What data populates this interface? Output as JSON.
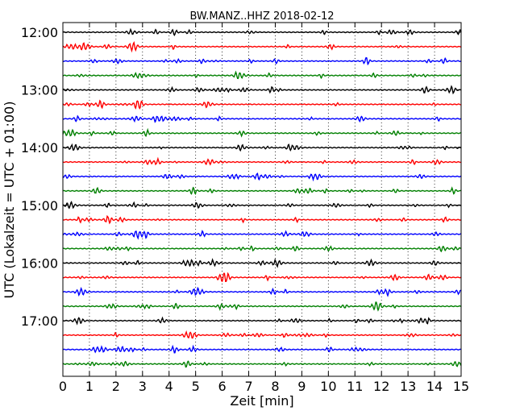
{
  "chart_data": {
    "type": "line",
    "title": "BW.MANZ..HHZ 2018-02-12",
    "xlabel": "Zeit  [min]",
    "ylabel": "UTC (Lokalzeit = UTC + 01:00)",
    "xlim": [
      0,
      15
    ],
    "x_ticks": [
      "0",
      "1",
      "2",
      "3",
      "4",
      "5",
      "6",
      "7",
      "8",
      "9",
      "10",
      "11",
      "12",
      "13",
      "14",
      "15"
    ],
    "y_tick_labels": [
      "12:00",
      "13:00",
      "14:00",
      "15:00",
      "16:00",
      "17:00"
    ],
    "grid": "vertical dotted at each minute",
    "trace_colors": [
      "#000000",
      "#ff0000",
      "#0000ff",
      "#008000"
    ],
    "series": [
      {
        "start": "12:00",
        "color": "#000000"
      },
      {
        "start": "12:15",
        "color": "#ff0000"
      },
      {
        "start": "12:30",
        "color": "#0000ff"
      },
      {
        "start": "12:45",
        "color": "#008000"
      },
      {
        "start": "13:00",
        "color": "#000000"
      },
      {
        "start": "13:15",
        "color": "#ff0000"
      },
      {
        "start": "13:30",
        "color": "#0000ff"
      },
      {
        "start": "13:45",
        "color": "#008000"
      },
      {
        "start": "14:00",
        "color": "#000000"
      },
      {
        "start": "14:15",
        "color": "#ff0000"
      },
      {
        "start": "14:30",
        "color": "#0000ff"
      },
      {
        "start": "14:45",
        "color": "#008000"
      },
      {
        "start": "15:00",
        "color": "#000000"
      },
      {
        "start": "15:15",
        "color": "#ff0000"
      },
      {
        "start": "15:30",
        "color": "#0000ff"
      },
      {
        "start": "15:45",
        "color": "#008000"
      },
      {
        "start": "16:00",
        "color": "#000000"
      },
      {
        "start": "16:15",
        "color": "#ff0000"
      },
      {
        "start": "16:30",
        "color": "#0000ff"
      },
      {
        "start": "16:45",
        "color": "#008000"
      },
      {
        "start": "17:00",
        "color": "#000000"
      },
      {
        "start": "17:15",
        "color": "#ff0000"
      },
      {
        "start": "17:30",
        "color": "#0000ff"
      },
      {
        "start": "17:45",
        "color": "#008000"
      }
    ]
  }
}
